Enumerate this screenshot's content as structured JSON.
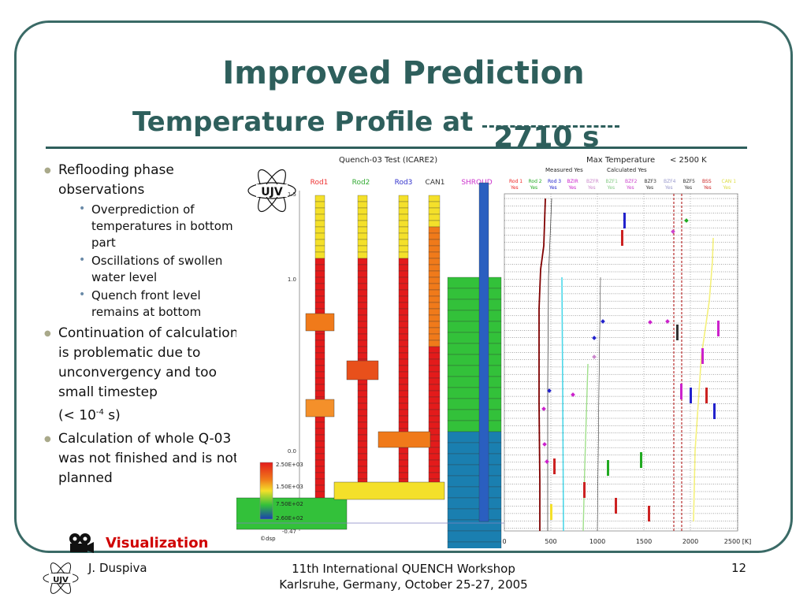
{
  "slide": {
    "title": "Improved Prediction",
    "subtitle_prefix": "Temperature Profile at",
    "subtitle_time": "2710 s"
  },
  "bullets": [
    {
      "text": "Reflooding phase observations",
      "sub": [
        "Overprediction of temperatures in bottom part",
        "Oscillations of swollen water level",
        "Quench front level remains at bottom"
      ]
    },
    {
      "text": "Continuation of calculation is problematic due to unconvergency and too small timestep",
      "extra": "(< 10",
      "sup": "-4",
      "extra_end": " s)"
    },
    {
      "text": "Calculation of whole Q-03 was not finished and is not planned"
    }
  ],
  "visualization_link": "Visualization",
  "figure": {
    "header": "Quench-03 Test (ICARE2)",
    "max_temp_label": "Max Temperature",
    "max_temp_value": "< 2500 K",
    "measured_label": "Measured Yes",
    "calculated_label": "Calculated Yes",
    "logo_text": "UJV",
    "columns": [
      "Rod1",
      "Rod2",
      "Rod3",
      "CAN1",
      "SHROUD"
    ],
    "column_colors": [
      "#e33",
      "#3a3",
      "#33c",
      "#333",
      "#c3c"
    ],
    "y_ticks": [
      "1.5",
      "1.0",
      "0.0",
      "-0.47"
    ],
    "color_scale": [
      "2.50E+03",
      "1.50E+03",
      "7.50E+02",
      "2.60E+02"
    ],
    "credit": "©dsp",
    "legend": [
      {
        "name": "Rod 1",
        "color": "#e22",
        "flag": "Yes"
      },
      {
        "name": "Rod 2",
        "color": "#2a2",
        "flag": "Yes"
      },
      {
        "name": "Rod 3",
        "color": "#22c",
        "flag": "Yes"
      },
      {
        "name": "BZIR",
        "color": "#c2c",
        "flag": "Yes"
      },
      {
        "name": "BZFR",
        "color": "#c8c",
        "flag": "Yes"
      },
      {
        "name": "BZF1",
        "color": "#8c8",
        "flag": "Yes"
      },
      {
        "name": "BZF2",
        "color": "#c4c",
        "flag": "Yes"
      },
      {
        "name": "BZF3",
        "color": "#333",
        "flag": "Yes"
      },
      {
        "name": "BZF4",
        "color": "#99c",
        "flag": "Yes"
      },
      {
        "name": "BZF5",
        "color": "#333",
        "flag": "Yes"
      },
      {
        "name": "BSS",
        "color": "#c22",
        "flag": "Yes"
      },
      {
        "name": "CAN 1",
        "color": "#dd4",
        "flag": "Yes"
      }
    ],
    "x_ticks": [
      "0",
      "500",
      "1000",
      "1500",
      "2000",
      "2500 [K]"
    ]
  },
  "footer": {
    "author": "J. Duspiva",
    "event_line1": "11th International QUENCH Workshop",
    "event_line2": "Karlsruhe, Germany, October 25-27, 2005",
    "page": "12"
  }
}
